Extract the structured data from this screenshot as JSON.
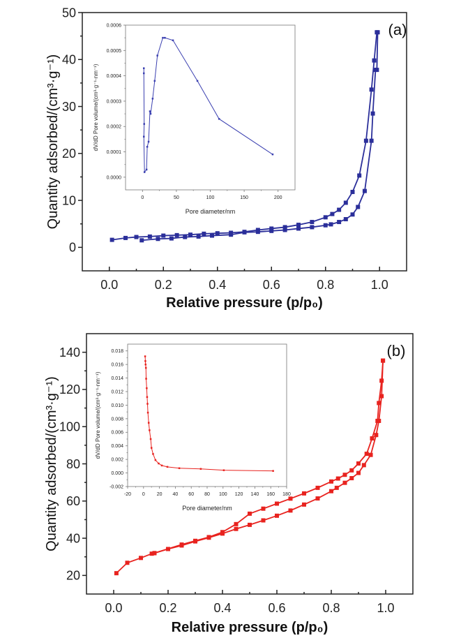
{
  "chart_data": [
    {
      "type": "line",
      "panel_label": "(a)",
      "xlabel": "Relative pressure (p/p₀)",
      "ylabel": "Quantity adsorbed/(cm³·g⁻¹)",
      "xlim": [
        -0.1,
        1.1
      ],
      "ylim": [
        -5,
        50
      ],
      "xticks": [
        0.0,
        0.2,
        0.4,
        0.6,
        0.8,
        1.0
      ],
      "xtick_labels": [
        "0.0",
        "0.2",
        "0.4",
        "0.6",
        "0.8",
        "1.0"
      ],
      "yticks": [
        0,
        10,
        20,
        30,
        40,
        50
      ],
      "ytick_labels": [
        "0",
        "10",
        "20",
        "30",
        "40",
        "50"
      ],
      "grid": false,
      "color": "#2b2f9a",
      "marker": "square",
      "series": [
        {
          "x": [
            0.12,
            0.18,
            0.23,
            0.28,
            0.33,
            0.38,
            0.45,
            0.5,
            0.55,
            0.6,
            0.65,
            0.7,
            0.75,
            0.8,
            0.82,
            0.85,
            0.875,
            0.9,
            0.92,
            0.945,
            0.97,
            0.975,
            0.985,
            0.99,
            0.993
          ],
          "y": [
            1.5,
            1.8,
            1.9,
            2.2,
            2.3,
            2.5,
            2.7,
            3.2,
            3.3,
            3.5,
            3.7,
            4.0,
            4.3,
            4.7,
            4.9,
            5.4,
            6.0,
            7.0,
            8.6,
            12.0,
            22.7,
            28.5,
            37.8,
            37.8,
            45.8
          ]
        },
        {
          "x": [
            0.01,
            0.06,
            0.1,
            0.15,
            0.2,
            0.25,
            0.3,
            0.35,
            0.4,
            0.45,
            0.5,
            0.55,
            0.6,
            0.65,
            0.7,
            0.75,
            0.8,
            0.825,
            0.85,
            0.875,
            0.9,
            0.925,
            0.95,
            0.97,
            0.98,
            0.99
          ],
          "y": [
            1.6,
            2.0,
            2.2,
            2.3,
            2.5,
            2.6,
            2.7,
            2.9,
            3.0,
            3.1,
            3.3,
            3.7,
            4.0,
            4.3,
            4.8,
            5.4,
            6.4,
            7.1,
            8.0,
            9.5,
            11.8,
            15.3,
            22.7,
            33.6,
            39.8,
            45.8
          ]
        }
      ],
      "inset": {
        "type": "line",
        "xlabel": "Pore diameter/nm",
        "ylabel": "dV/dD Pore volume/(cm³·g⁻¹·nm⁻¹)",
        "xlim": [
          -25,
          225
        ],
        "ylim": [
          -5e-05,
          0.0006
        ],
        "xticks": [
          0,
          50,
          100,
          150,
          200
        ],
        "xtick_labels": [
          "0",
          "50",
          "100",
          "150",
          "200"
        ],
        "yticks": [
          0,
          0.0001,
          0.0002,
          0.0003,
          0.0004,
          0.0005,
          0.0006
        ],
        "ytick_labels": [
          "0.0000",
          "0.0001",
          "0.0002",
          "0.0003",
          "0.0004",
          "0.0005",
          "0.0006"
        ],
        "color": "#3a3fb0",
        "series": [
          {
            "x": [
              2,
              2,
              2.5,
              2,
              3,
              6,
              7,
              9,
              11,
              12,
              15,
              18,
              22,
              30,
              33,
              45,
              81,
              113,
              192
            ],
            "y": [
              0.00043,
              0.00041,
              0.00021,
              0.00016,
              2e-05,
              3e-05,
              0.00012,
              0.00014,
              0.00026,
              0.00025,
              0.00031,
              0.00038,
              0.00048,
              0.00055,
              0.00055,
              0.00054,
              0.00038,
              0.00023,
              9e-05
            ]
          }
        ]
      }
    },
    {
      "type": "line",
      "panel_label": "(b)",
      "xlabel": "Relative pressure (p/p₀)",
      "ylabel": "Quantity adsorbed/(cm³·g⁻¹)",
      "xlim": [
        -0.1,
        1.1
      ],
      "ylim": [
        10,
        150
      ],
      "xticks": [
        0.0,
        0.2,
        0.4,
        0.6,
        0.8,
        1.0
      ],
      "xtick_labels": [
        "0.0",
        "0.2",
        "0.4",
        "0.6",
        "0.8",
        "1.0"
      ],
      "yticks": [
        20,
        40,
        60,
        80,
        100,
        120,
        140
      ],
      "ytick_labels": [
        "20",
        "40",
        "60",
        "80",
        "100",
        "120",
        "140"
      ],
      "grid": false,
      "color": "#e8231f",
      "marker": "square",
      "series": [
        {
          "x": [
            0.01,
            0.05,
            0.1,
            0.14,
            0.15,
            0.2,
            0.25,
            0.3,
            0.35,
            0.4,
            0.45,
            0.5,
            0.55,
            0.6,
            0.65,
            0.7,
            0.75,
            0.8,
            0.82,
            0.85,
            0.875,
            0.9,
            0.92,
            0.945,
            0.965,
            0.975,
            0.985,
            0.99
          ],
          "y": [
            21.2,
            26.8,
            29.4,
            31.7,
            32.0,
            34.2,
            36.1,
            38.3,
            40.3,
            42.5,
            45.0,
            47.2,
            49.6,
            52.1,
            54.9,
            58.1,
            61.4,
            65.3,
            67.1,
            69.8,
            72.3,
            75.1,
            79.3,
            84.8,
            95.5,
            103.1,
            116.4,
            135.5
          ]
        },
        {
          "x": [
            0.99,
            0.985,
            0.975,
            0.97,
            0.95,
            0.93,
            0.9,
            0.875,
            0.85,
            0.825,
            0.8,
            0.75,
            0.7,
            0.65,
            0.6,
            0.55,
            0.5,
            0.45,
            0.4,
            0.35,
            0.3,
            0.25,
            0.15
          ],
          "y": [
            135.5,
            124.7,
            112.7,
            103.1,
            93.7,
            85.4,
            80.2,
            76.5,
            74.1,
            72.1,
            70.5,
            67.1,
            64.1,
            61.3,
            58.6,
            55.9,
            53.2,
            47.6,
            43.3,
            40.6,
            38.6,
            36.6,
            32.0
          ]
        }
      ],
      "inset": {
        "type": "line",
        "xlabel": "Pore diameter/nm",
        "ylabel": "dV/dD Pore volume/(cm³·g⁻¹·nm⁻¹)",
        "xlim": [
          -20,
          180
        ],
        "ylim": [
          -0.002,
          0.019
        ],
        "xticks": [
          -20,
          0,
          20,
          40,
          60,
          80,
          100,
          120,
          140,
          160,
          180
        ],
        "xtick_labels": [
          "-20",
          "0",
          "20",
          "40",
          "60",
          "80",
          "100",
          "120",
          "140",
          "160",
          "180"
        ],
        "yticks": [
          -0.002,
          0,
          0.002,
          0.004,
          0.006,
          0.008,
          0.01,
          0.012,
          0.014,
          0.016,
          0.018
        ],
        "ytick_labels": [
          "-0.002",
          "0.000",
          "0.002",
          "0.004",
          "0.006",
          "0.008",
          "0.010",
          "0.012",
          "0.014",
          "0.016",
          "0.018"
        ],
        "color": "#e8231f",
        "series": [
          {
            "x": [
              2,
              2.3,
              2.6,
              3,
              3.3,
              4,
              4.5,
              5,
              5.5,
              6.5,
              7.5,
              9,
              10,
              12,
              15,
              19,
              23,
              30,
              45,
              72,
              101,
              163
            ],
            "y": [
              0.0172,
              0.0165,
              0.016,
              0.0155,
              0.0139,
              0.0125,
              0.0112,
              0.0102,
              0.0089,
              0.0074,
              0.0063,
              0.005,
              0.0037,
              0.0028,
              0.0019,
              0.0014,
              0.0011,
              0.0009,
              0.0007,
              0.0006,
              0.0004,
              0.0003
            ]
          }
        ]
      }
    }
  ]
}
